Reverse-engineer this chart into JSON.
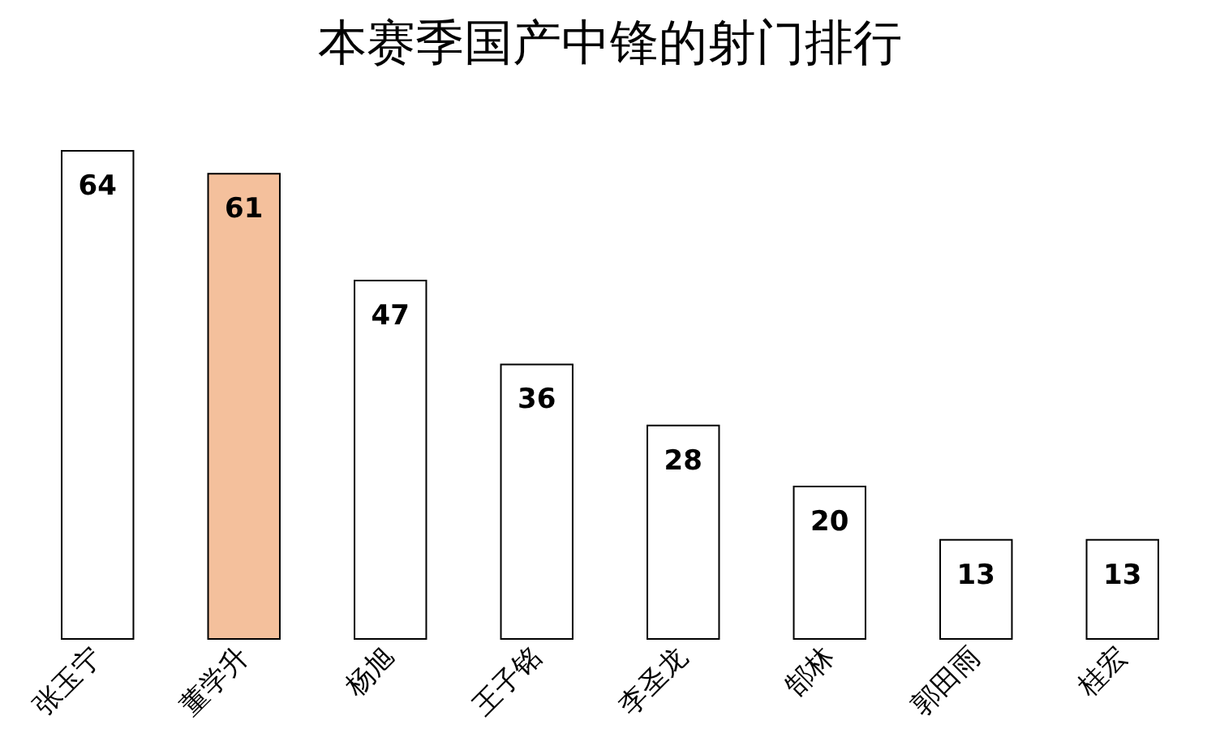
{
  "chart_data": {
    "type": "bar",
    "title": "本赛季国产中锋的射门排行",
    "categories": [
      "张玉宁",
      "董学升",
      "杨旭",
      "王子铭",
      "李圣龙",
      "郜林",
      "郭田雨",
      "桂宏"
    ],
    "values": [
      64,
      61,
      47,
      36,
      28,
      20,
      13,
      13
    ],
    "colors": [
      "#ffffff",
      "#f4c09c",
      "#ffffff",
      "#ffffff",
      "#ffffff",
      "#ffffff",
      "#ffffff",
      "#ffffff"
    ],
    "data_labels": true
  }
}
